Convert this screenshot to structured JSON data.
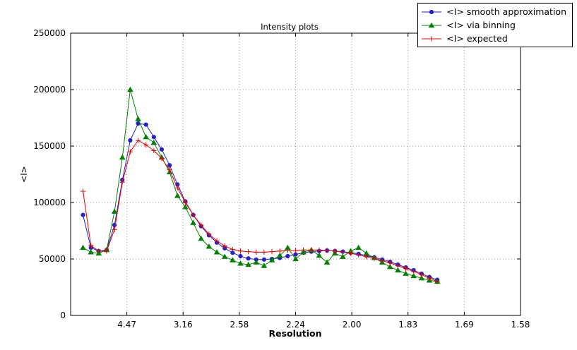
{
  "title": "Intensity plots",
  "axes": {
    "xlabel": "Resolution",
    "ylabel": "<I>",
    "x_range": [
      0,
      0.4
    ],
    "y_range": [
      0,
      250000
    ],
    "x_ticks": [
      {
        "pos": 0.05,
        "label": "4.47"
      },
      {
        "pos": 0.1,
        "label": "3.16"
      },
      {
        "pos": 0.15,
        "label": "2.58"
      },
      {
        "pos": 0.2,
        "label": "2.24"
      },
      {
        "pos": 0.25,
        "label": "2.00"
      },
      {
        "pos": 0.3,
        "label": "1.83"
      },
      {
        "pos": 0.35,
        "label": "1.69"
      },
      {
        "pos": 0.4,
        "label": "1.58"
      }
    ],
    "y_ticks": [
      {
        "pos": 0,
        "label": "0"
      },
      {
        "pos": 50000,
        "label": "50000"
      },
      {
        "pos": 100000,
        "label": "100000"
      },
      {
        "pos": 150000,
        "label": "150000"
      },
      {
        "pos": 200000,
        "label": "200000"
      },
      {
        "pos": 250000,
        "label": "250000"
      }
    ]
  },
  "chart_data": {
    "type": "line",
    "title": "Intensity plots",
    "xlabel": "Resolution",
    "ylabel": "<I>",
    "ylim": [
      0,
      250000
    ],
    "grid": true,
    "legend_position": "top-right-outside",
    "x_tick_labels": [
      "4.47",
      "3.16",
      "2.58",
      "2.24",
      "2.00",
      "1.83",
      "1.69",
      "1.58"
    ],
    "x": [
      0.011,
      0.018,
      0.025,
      0.032,
      0.039,
      0.046,
      0.053,
      0.06,
      0.067,
      0.074,
      0.081,
      0.088,
      0.095,
      0.102,
      0.109,
      0.116,
      0.123,
      0.13,
      0.137,
      0.144,
      0.151,
      0.158,
      0.165,
      0.172,
      0.179,
      0.186,
      0.193,
      0.2,
      0.207,
      0.214,
      0.221,
      0.228,
      0.235,
      0.242,
      0.249,
      0.256,
      0.263,
      0.27,
      0.277,
      0.284,
      0.291,
      0.298,
      0.305,
      0.312,
      0.319,
      0.326
    ],
    "series": [
      {
        "name": "<I> smooth approximation",
        "color": "#2222cc",
        "marker": "circle",
        "values": [
          89000,
          60000,
          57000,
          58000,
          80000,
          120000,
          155000,
          170000,
          169000,
          158000,
          147000,
          133000,
          116000,
          101000,
          89000,
          79000,
          71000,
          64500,
          59500,
          55500,
          52500,
          50500,
          49500,
          49500,
          50000,
          51000,
          52500,
          54000,
          55500,
          56500,
          57000,
          57500,
          57000,
          56500,
          55500,
          54500,
          53000,
          51500,
          49500,
          47500,
          45000,
          42500,
          40000,
          37000,
          34000,
          31500
        ]
      },
      {
        "name": "<I> via binning",
        "color": "#008000",
        "marker": "triangle",
        "values": [
          60000,
          56000,
          55000,
          58000,
          92000,
          140000,
          200000,
          174000,
          158000,
          153000,
          140000,
          127000,
          106000,
          96000,
          82000,
          68000,
          61000,
          56000,
          52000,
          49000,
          46000,
          45000,
          47000,
          44000,
          49000,
          53000,
          60000,
          50000,
          56000,
          58000,
          53000,
          47000,
          55000,
          52000,
          57000,
          60000,
          55000,
          51000,
          47000,
          43000,
          40000,
          37000,
          35000,
          33000,
          31000,
          30000
        ]
      },
      {
        "name": "<I> expected",
        "color": "#e60000",
        "marker": "plus",
        "values": [
          110000,
          62000,
          57000,
          57000,
          76000,
          118000,
          145000,
          155000,
          151000,
          146000,
          139000,
          129000,
          113000,
          100000,
          89000,
          80000,
          72000,
          66000,
          61500,
          58500,
          57000,
          56500,
          56000,
          56000,
          56500,
          57000,
          57500,
          57500,
          58000,
          58000,
          58000,
          57500,
          57000,
          56000,
          55000,
          53500,
          52000,
          50500,
          48500,
          46500,
          44000,
          41500,
          39000,
          36000,
          33000,
          30000
        ]
      }
    ]
  }
}
